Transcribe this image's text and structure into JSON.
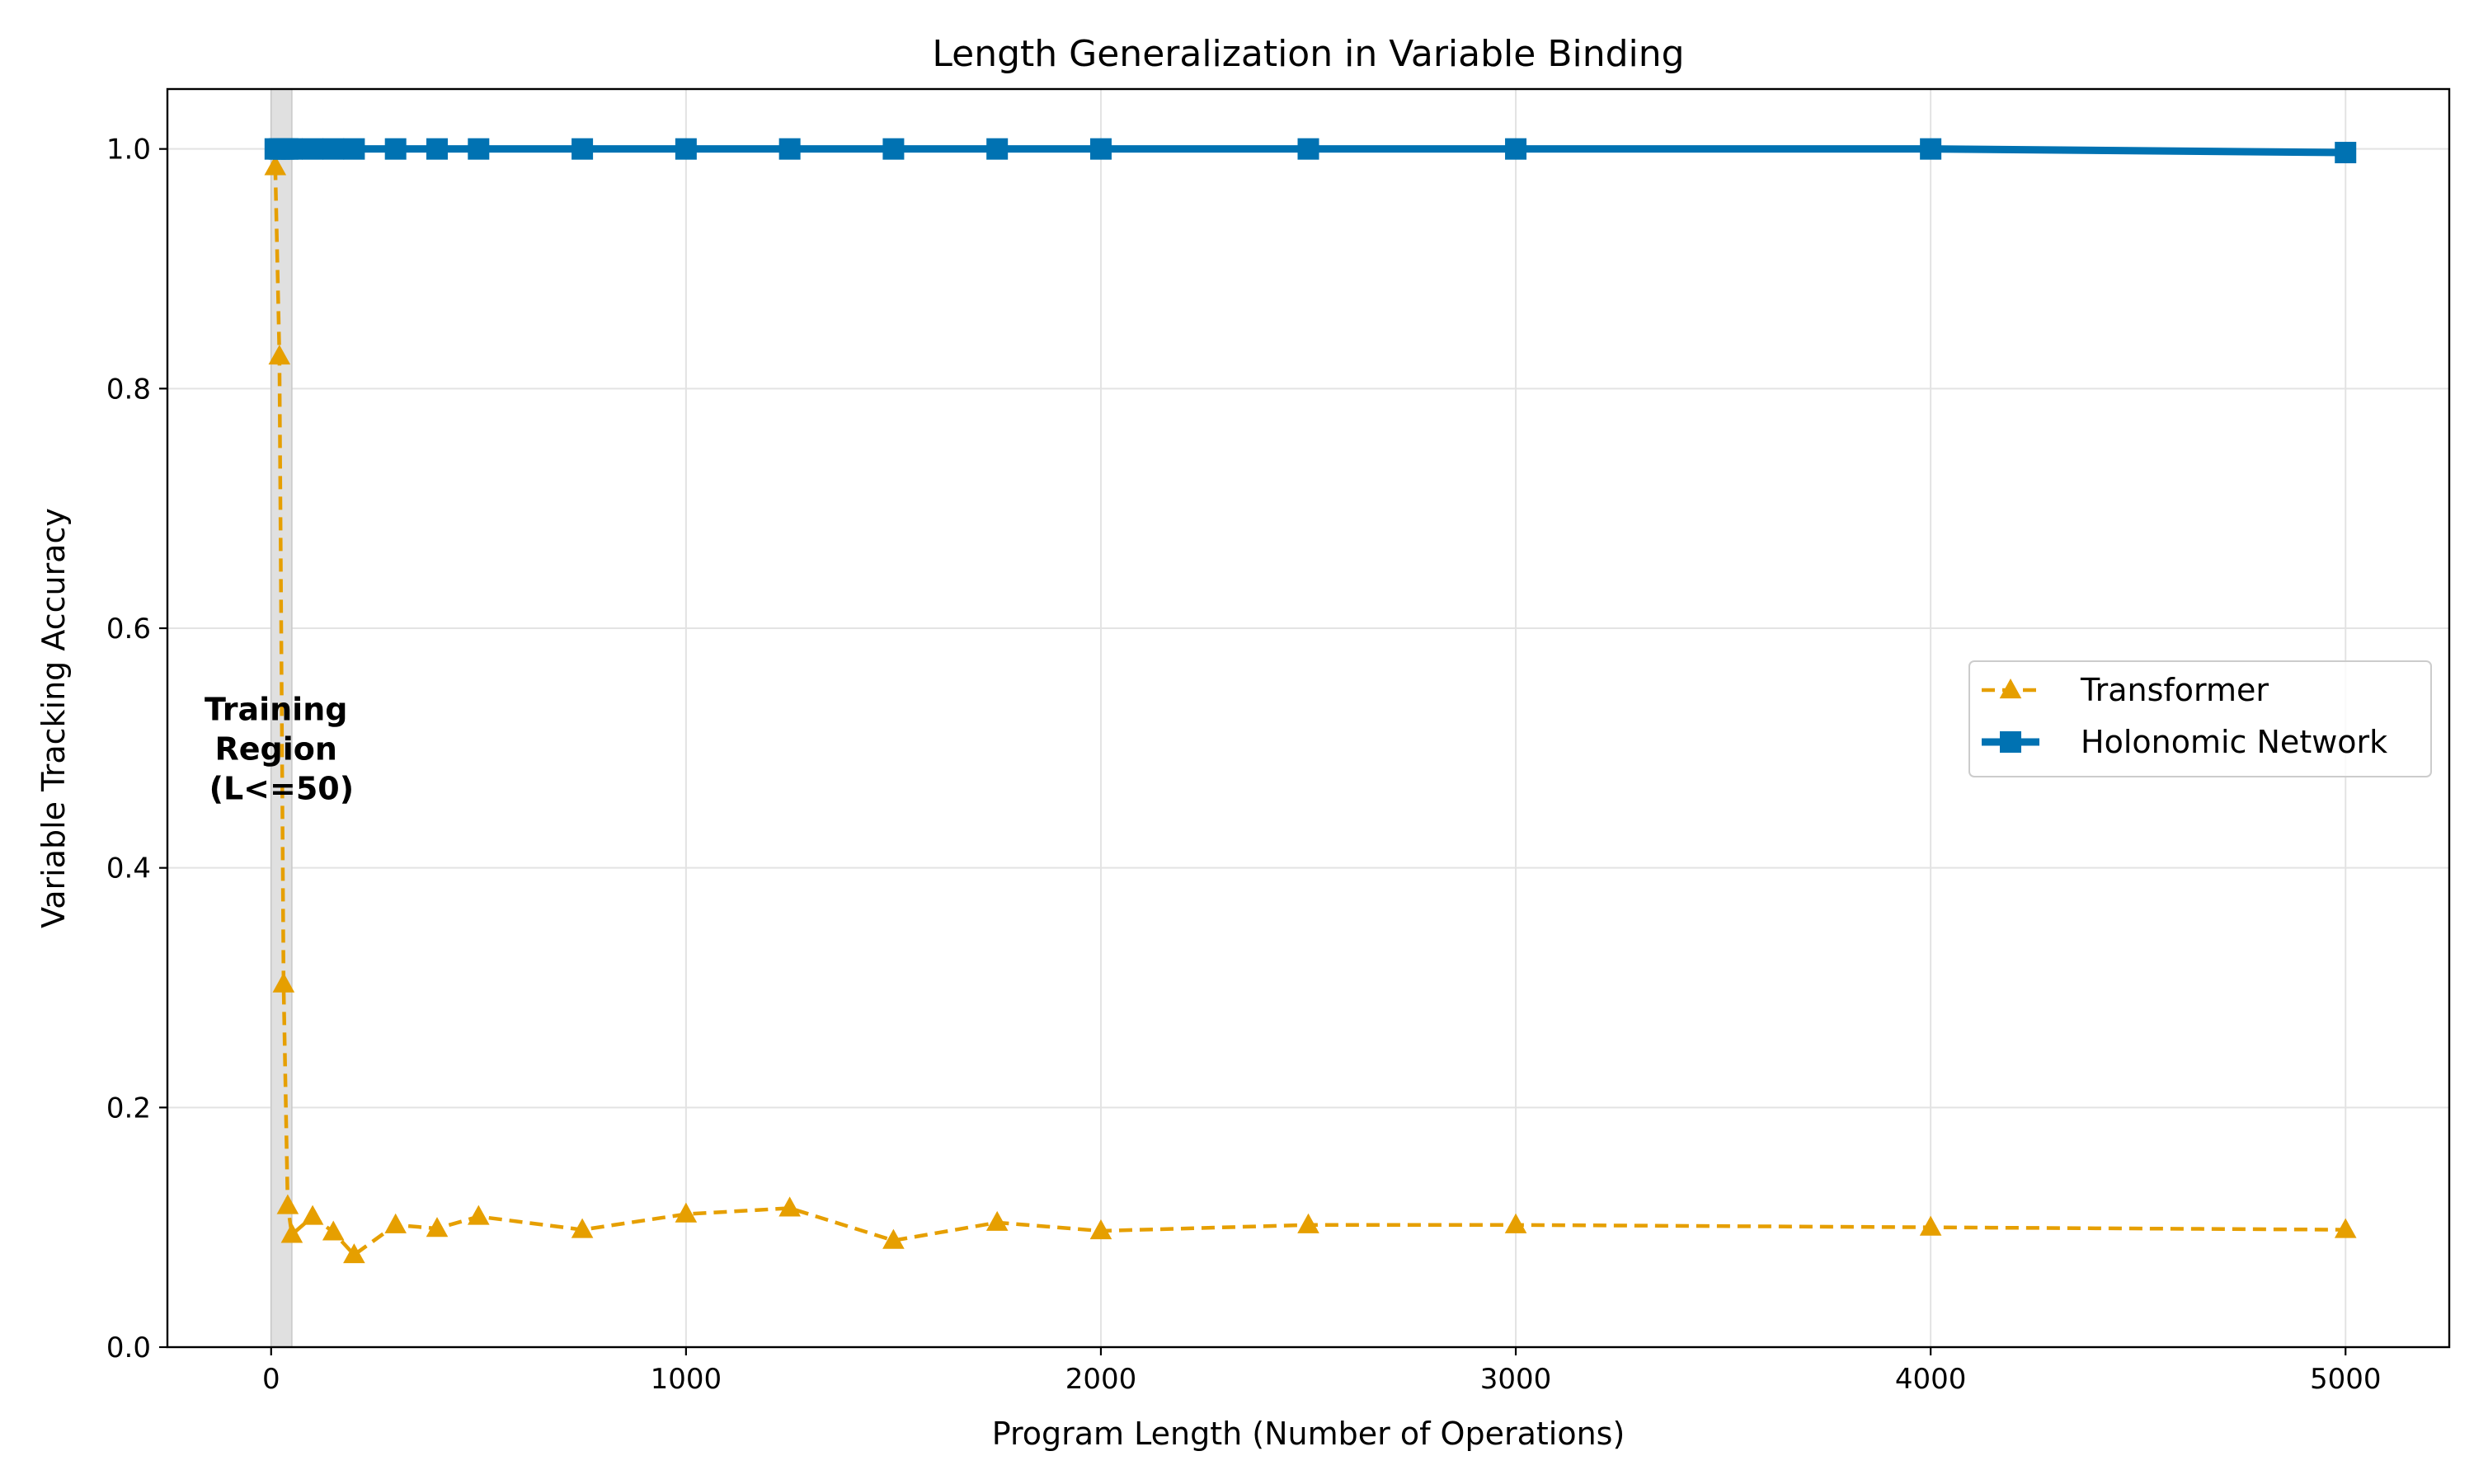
{
  "chart_data": {
    "type": "line",
    "title": "Length Generalization in Variable Binding",
    "xlabel": "Program Length (Number of Operations)",
    "ylabel": "Variable Tracking Accuracy",
    "xlim": [
      -250,
      5250
    ],
    "ylim": [
      0.0,
      1.05
    ],
    "xticks": [
      0,
      1000,
      2000,
      3000,
      4000,
      5000
    ],
    "xtick_labels": [
      "0",
      "1000",
      "2000",
      "3000",
      "4000",
      "5000"
    ],
    "yticks": [
      0.0,
      0.2,
      0.4,
      0.6,
      0.8,
      1.0
    ],
    "ytick_labels": [
      "0.0",
      "0.2",
      "0.4",
      "0.6",
      "0.8",
      "1.0"
    ],
    "grid": true,
    "legend_position": "center-right",
    "shaded_region": {
      "x_start": 0,
      "x_end": 50,
      "color": "#e0e0e0"
    },
    "annotation": {
      "lines": [
        "Training",
        "Region",
        "(L<=50)"
      ],
      "x": 25,
      "y": 0.5
    },
    "series": [
      {
        "name": "Transformer",
        "color": "#e69f00",
        "style": "dashed",
        "marker": "triangle",
        "x": [
          10,
          20,
          30,
          40,
          50,
          100,
          150,
          200,
          300,
          400,
          500,
          750,
          1000,
          1250,
          1500,
          1750,
          2000,
          2500,
          3000,
          4000,
          5000
        ],
        "y": [
          0.985,
          0.827,
          0.303,
          0.118,
          0.094,
          0.109,
          0.096,
          0.077,
          0.102,
          0.099,
          0.109,
          0.098,
          0.111,
          0.116,
          0.089,
          0.104,
          0.097,
          0.102,
          0.102,
          0.1,
          0.098
        ]
      },
      {
        "name": "Holonomic Network",
        "color": "#0072b2",
        "style": "solid",
        "marker": "square",
        "x": [
          10,
          20,
          30,
          40,
          50,
          100,
          150,
          200,
          300,
          400,
          500,
          750,
          1000,
          1250,
          1500,
          1750,
          2000,
          2500,
          3000,
          4000,
          5000
        ],
        "y": [
          1.0,
          1.0,
          1.0,
          1.0,
          1.0,
          1.0,
          1.0,
          1.0,
          1.0,
          1.0,
          1.0,
          1.0,
          1.0,
          1.0,
          1.0,
          1.0,
          1.0,
          1.0,
          1.0,
          1.0,
          0.997
        ]
      }
    ]
  }
}
